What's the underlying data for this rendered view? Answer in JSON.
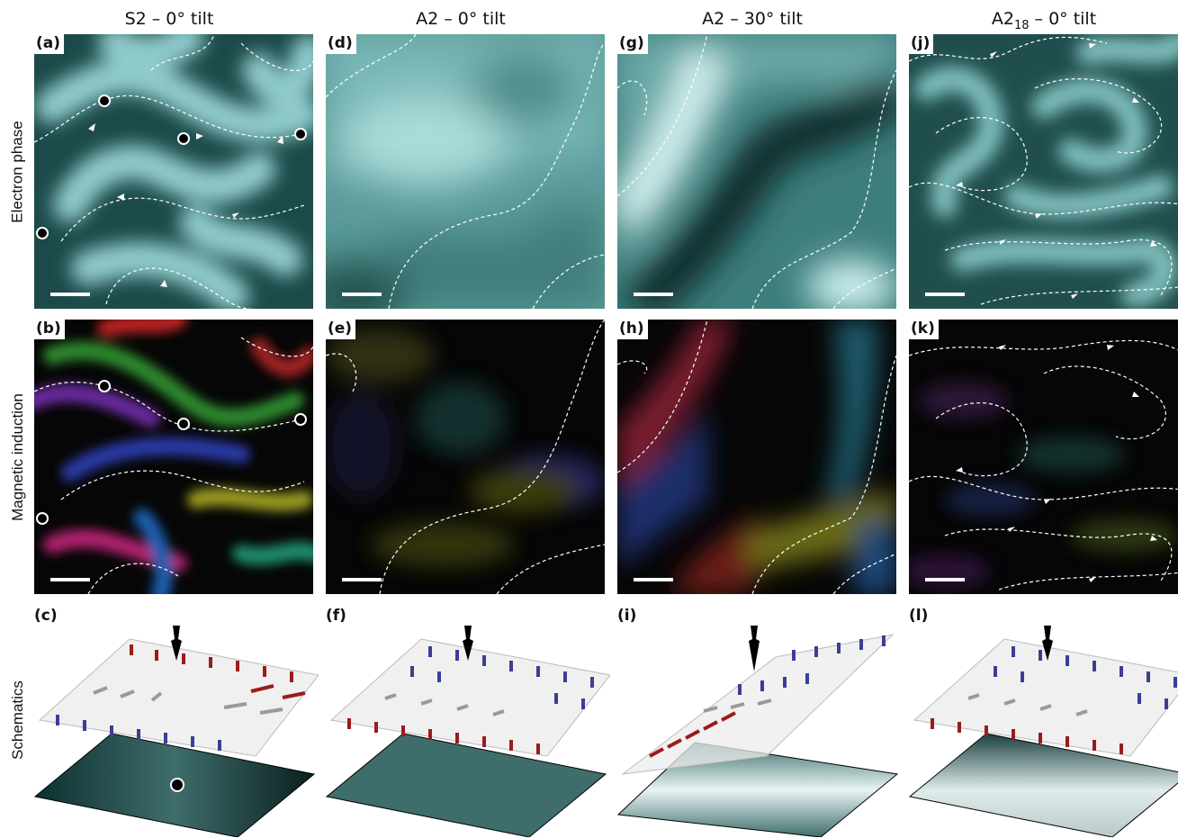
{
  "columns": [
    {
      "title": "S2 – 0° tilt"
    },
    {
      "title": "A2 – 0° tilt"
    },
    {
      "title": "A2 – 30° tilt"
    },
    {
      "title": "A2",
      "title_sub": "18",
      "title_rest": " – 0° tilt"
    }
  ],
  "rows": {
    "phase": "Electron phase",
    "induction": "Magnetic induction",
    "schematics": "Schematics"
  },
  "panels": {
    "a": "(a)",
    "b": "(b)",
    "c": "(c)",
    "d": "(d)",
    "e": "(e)",
    "f": "(f)",
    "g": "(g)",
    "h": "(h)",
    "i": "(i)",
    "j": "(j)",
    "k": "(k)",
    "l": "(l)"
  },
  "colors": {
    "phase_dark": "#0c2626",
    "phase_mid": "#2f7070",
    "phase_light": "#cfeeee",
    "induction_bg": "#060606",
    "arrow_up": "#9b1c1c",
    "arrow_down": "#3a3f93",
    "sample_teal": "#3e6d6b"
  }
}
